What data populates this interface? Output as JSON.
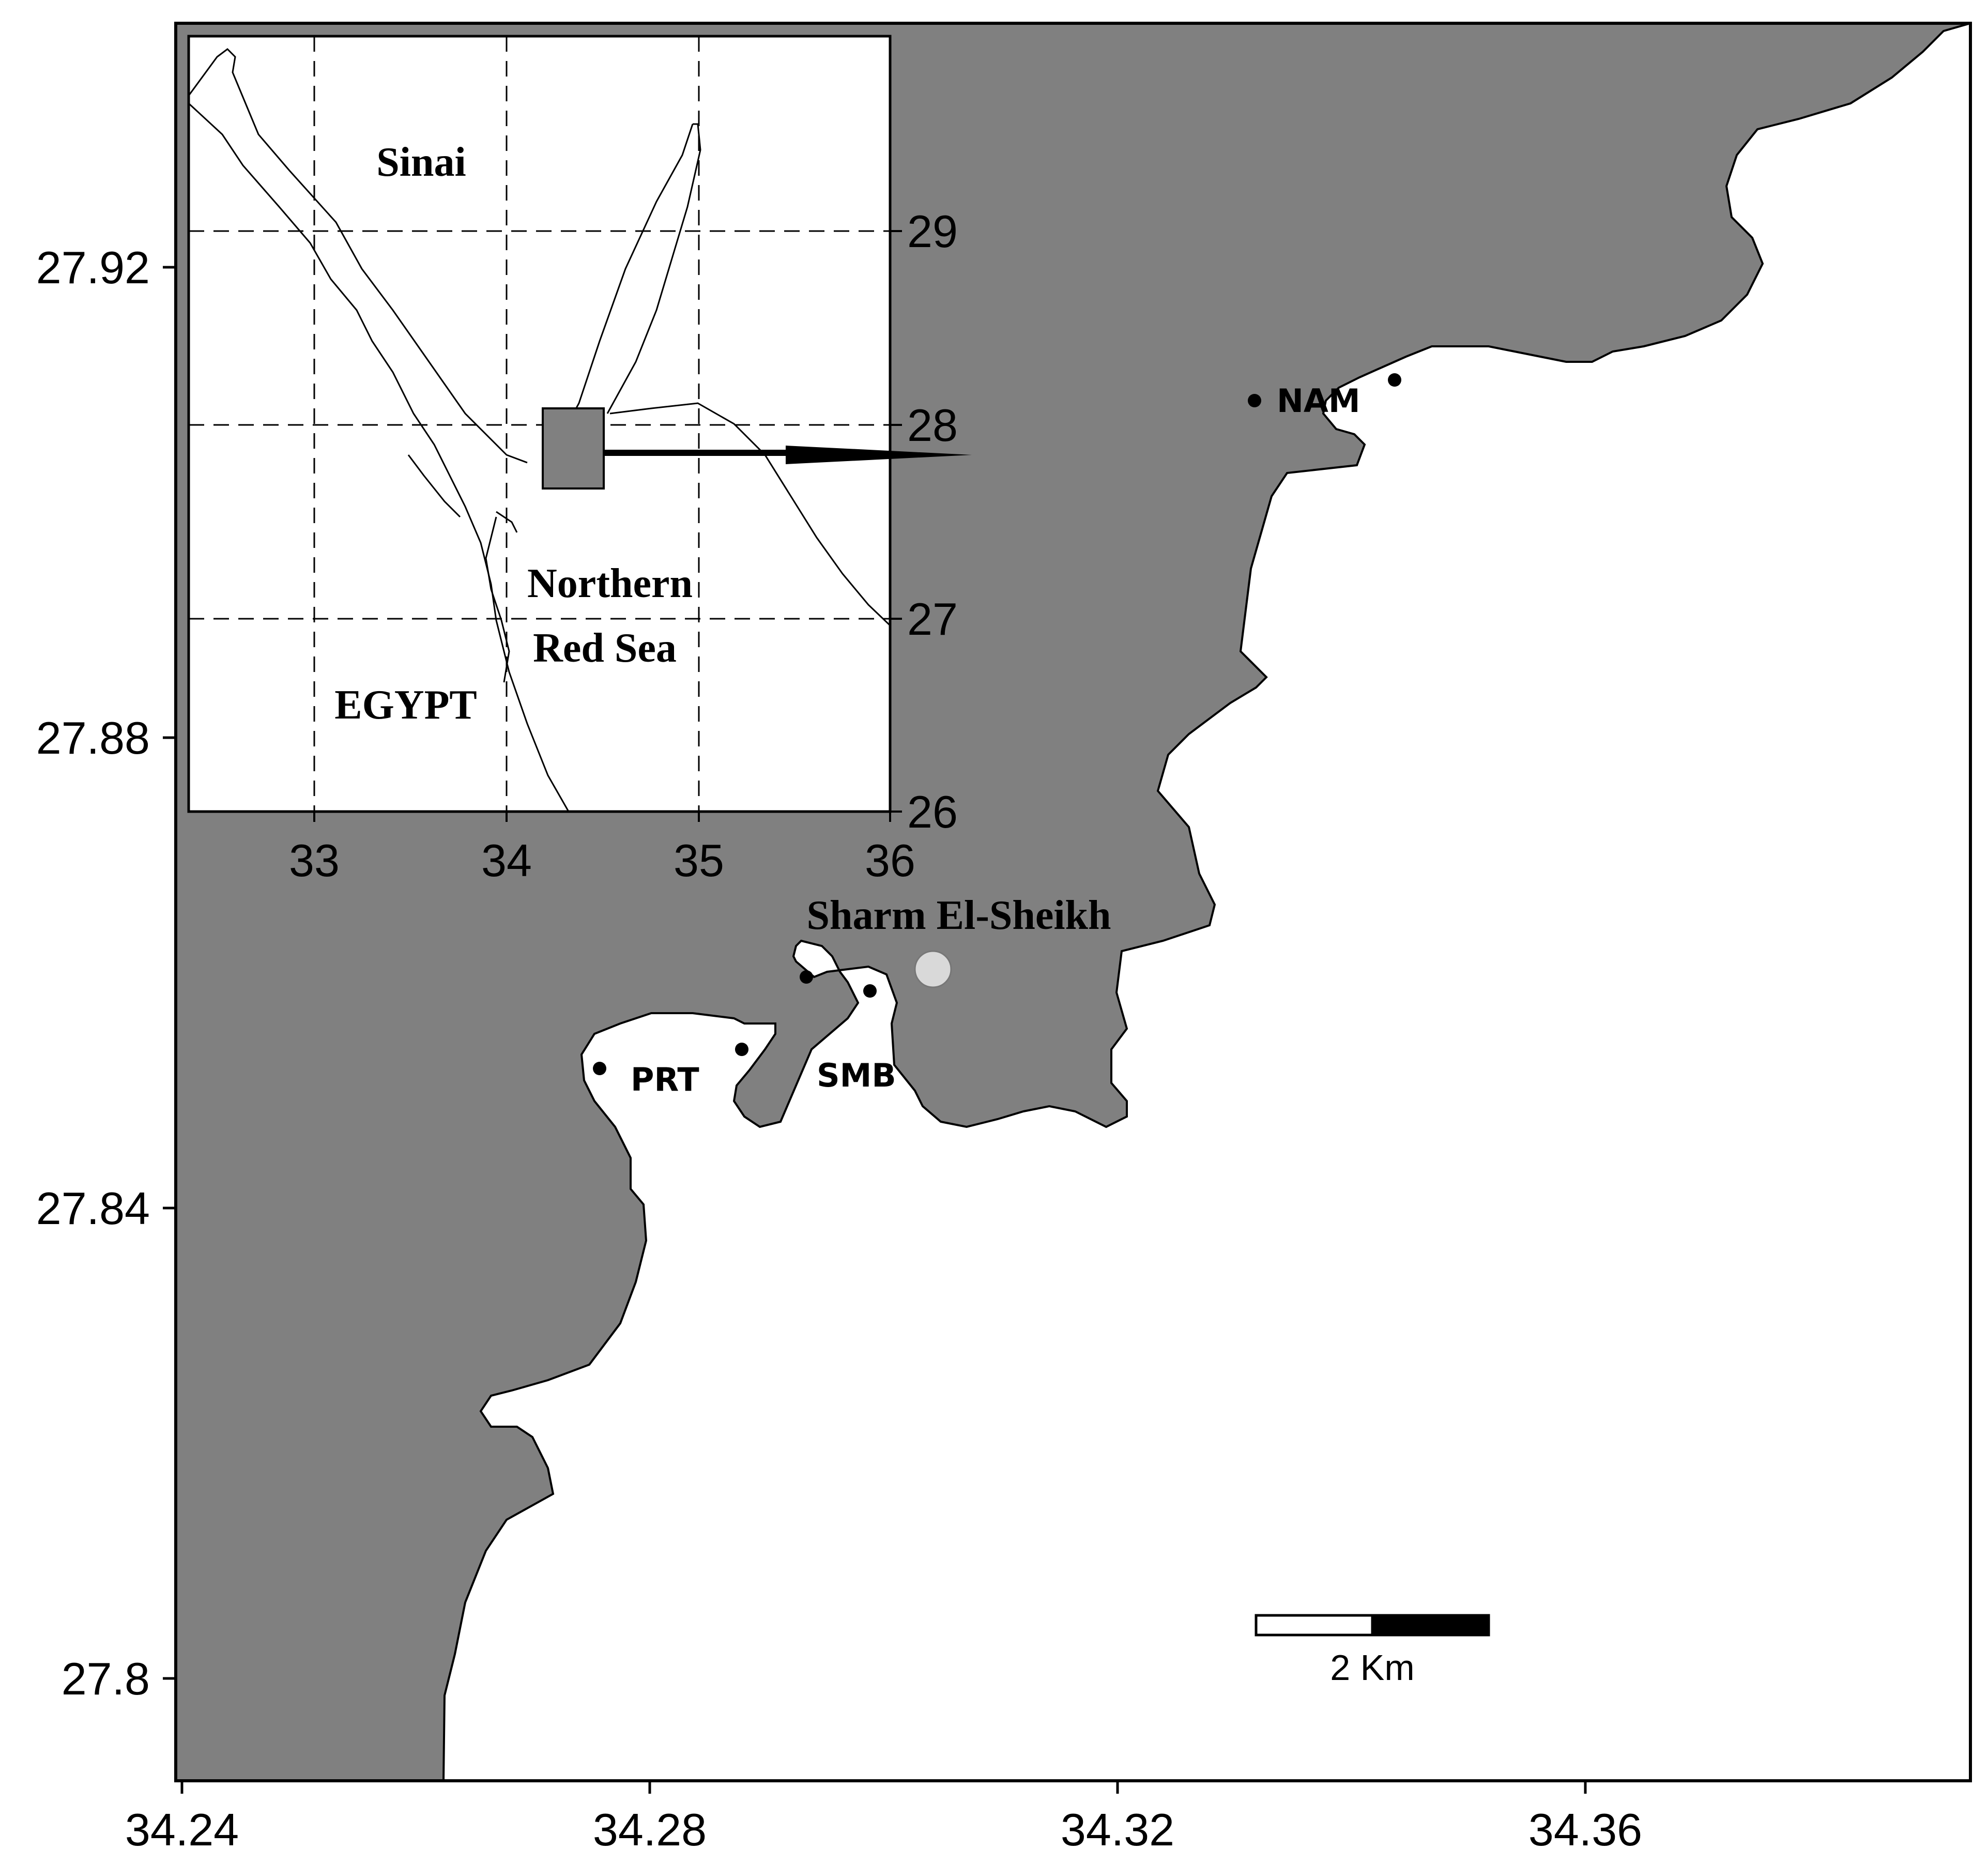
{
  "main_map": {
    "x_ticks": [
      "34.24",
      "34.28",
      "34.32",
      "34.36"
    ],
    "y_ticks": [
      "27.92",
      "27.88",
      "27.84",
      "27.8"
    ],
    "sites": [
      {
        "code": "NAM"
      },
      {
        "code": "PRT"
      },
      {
        "code": "SMB"
      }
    ],
    "city_label": "Sharm El-Sheikh",
    "scale_bar_label": "2 Km",
    "colors": {
      "land": "#808080",
      "sea": "#ffffff",
      "city_marker": "#d9d9d9",
      "site_marker": "#000000"
    }
  },
  "inset_map": {
    "x_ticks": [
      "33",
      "34",
      "35",
      "36"
    ],
    "y_ticks": [
      "29",
      "28",
      "27",
      "26"
    ],
    "labels": {
      "sinai": "Sinai",
      "sea_line1": "Northern",
      "sea_line2": "Red Sea",
      "egypt": "EGYPT"
    }
  }
}
